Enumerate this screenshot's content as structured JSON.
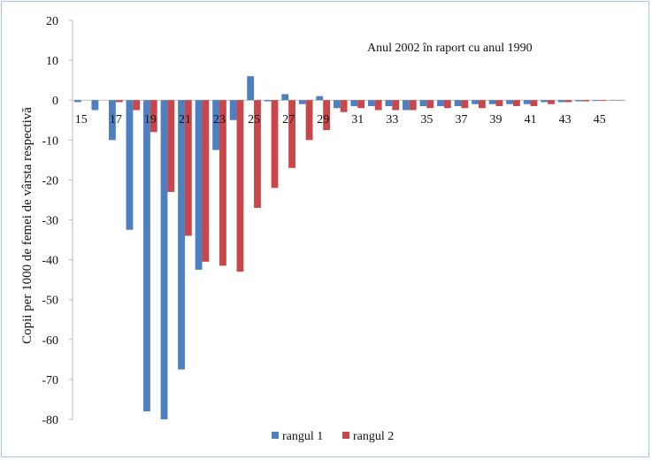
{
  "chart_data": {
    "type": "bar",
    "annotation": "Anul 2002 în raport cu anul 1990",
    "ylabel": "Copii per 1000 de femei de vârsta respectivă",
    "xlabel": "",
    "ylim": [
      -80,
      20
    ],
    "y_ticks": [
      20,
      10,
      0,
      -10,
      -20,
      -30,
      -40,
      -50,
      -60,
      -70,
      -80
    ],
    "x_tick_labels": [
      "15",
      "17",
      "19",
      "21",
      "23",
      "25",
      "27",
      "29",
      "31",
      "33",
      "35",
      "37",
      "39",
      "41",
      "43",
      "45"
    ],
    "categories": [
      "15",
      "16",
      "17",
      "18",
      "19",
      "20",
      "21",
      "22",
      "23",
      "24",
      "25",
      "26",
      "27",
      "28",
      "29",
      "30",
      "31",
      "32",
      "33",
      "34",
      "35",
      "36",
      "37",
      "38",
      "39",
      "40",
      "41",
      "42",
      "43",
      "44",
      "45",
      "46"
    ],
    "series": [
      {
        "name": "rangul 1",
        "color": "#4e7fc0",
        "values": [
          -0.5,
          -2.5,
          -10,
          -32.5,
          -78,
          -80,
          -67.5,
          -42.5,
          -12.5,
          -5,
          6,
          -0.3,
          1.5,
          -1,
          1,
          -2,
          -1.5,
          -1.5,
          -1.5,
          -2.5,
          -1.5,
          -1.5,
          -1.5,
          -1,
          -1,
          -1,
          -1,
          -0.5,
          -0.5,
          -0.3,
          -0.2,
          -0.1
        ]
      },
      {
        "name": "rangul 2",
        "color": "#c9474a",
        "values": [
          0,
          0,
          -0.5,
          -2.5,
          -8,
          -23,
          -34,
          -40.5,
          -41.5,
          -43,
          -27,
          -22,
          -17,
          -10,
          -7.5,
          -3,
          -2,
          -2.5,
          -2.5,
          -2.5,
          -2,
          -2,
          -2,
          -2,
          -1.5,
          -1.5,
          -1.5,
          -1,
          -0.5,
          -0.3,
          -0.2,
          -0.1
        ]
      }
    ],
    "legend_position": "bottom-center",
    "grid": false
  }
}
